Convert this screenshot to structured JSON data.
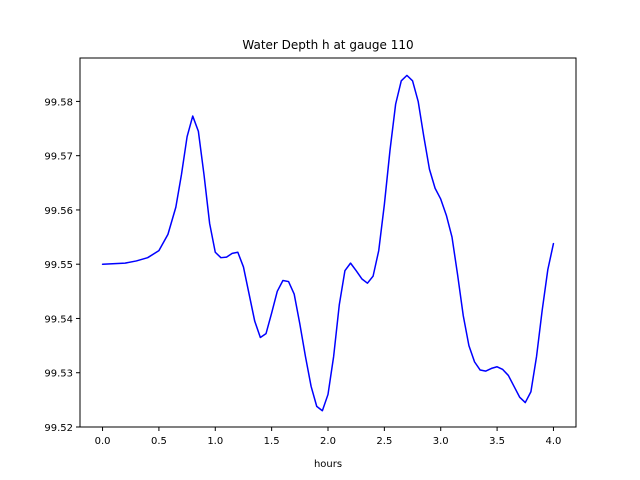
{
  "chart_data": {
    "type": "line",
    "title": "Water Depth h at gauge 110",
    "xlabel": "hours",
    "ylabel": "",
    "xlim": [
      -0.2,
      4.2
    ],
    "ylim": [
      99.52,
      99.588
    ],
    "xticks": [
      0.0,
      0.5,
      1.0,
      1.5,
      2.0,
      2.5,
      3.0,
      3.5,
      4.0
    ],
    "xtick_labels": [
      "0.0",
      "0.5",
      "1.0",
      "1.5",
      "2.0",
      "2.5",
      "3.0",
      "3.5",
      "4.0"
    ],
    "yticks": [
      99.52,
      99.53,
      99.54,
      99.55,
      99.56,
      99.57,
      99.58
    ],
    "ytick_labels": [
      "99.52",
      "99.53",
      "99.54",
      "99.55",
      "99.56",
      "99.57",
      "99.58"
    ],
    "grid": false,
    "series": [
      {
        "color": "#0000ff",
        "x": [
          0.0,
          0.2,
          0.3,
          0.4,
          0.5,
          0.58,
          0.65,
          0.7,
          0.75,
          0.8,
          0.85,
          0.9,
          0.95,
          1.0,
          1.05,
          1.1,
          1.15,
          1.2,
          1.25,
          1.3,
          1.35,
          1.4,
          1.45,
          1.5,
          1.55,
          1.6,
          1.65,
          1.7,
          1.75,
          1.8,
          1.85,
          1.9,
          1.95,
          2.0,
          2.05,
          2.1,
          2.15,
          2.2,
          2.25,
          2.3,
          2.35,
          2.4,
          2.45,
          2.5,
          2.55,
          2.6,
          2.65,
          2.7,
          2.75,
          2.8,
          2.85,
          2.9,
          2.95,
          3.0,
          3.05,
          3.1,
          3.15,
          3.2,
          3.25,
          3.3,
          3.35,
          3.4,
          3.45,
          3.5,
          3.55,
          3.6,
          3.65,
          3.7,
          3.75,
          3.8,
          3.85,
          3.9,
          3.95,
          4.0
        ],
        "y": [
          99.55,
          99.5502,
          99.5506,
          99.5512,
          99.5525,
          99.5555,
          99.5605,
          99.5665,
          99.5735,
          99.5773,
          99.5745,
          99.5665,
          99.5575,
          99.5522,
          99.5512,
          99.5513,
          99.552,
          99.5522,
          99.5495,
          99.5445,
          99.5395,
          99.5365,
          99.5372,
          99.541,
          99.545,
          99.547,
          99.5468,
          99.5445,
          99.539,
          99.533,
          99.5275,
          99.5238,
          99.523,
          99.526,
          99.533,
          99.5425,
          99.5488,
          99.5502,
          99.5488,
          99.5473,
          99.5465,
          99.5478,
          99.5525,
          99.561,
          99.571,
          99.5795,
          99.5838,
          99.5848,
          99.5838,
          99.58,
          99.5735,
          99.5675,
          99.564,
          99.562,
          99.559,
          99.555,
          99.548,
          99.5405,
          99.535,
          99.532,
          99.5305,
          99.5303,
          99.5308,
          99.5311,
          99.5306,
          99.5295,
          99.5275,
          99.5255,
          99.5245,
          99.5265,
          99.533,
          99.5415,
          99.549,
          99.5538
        ]
      }
    ]
  }
}
